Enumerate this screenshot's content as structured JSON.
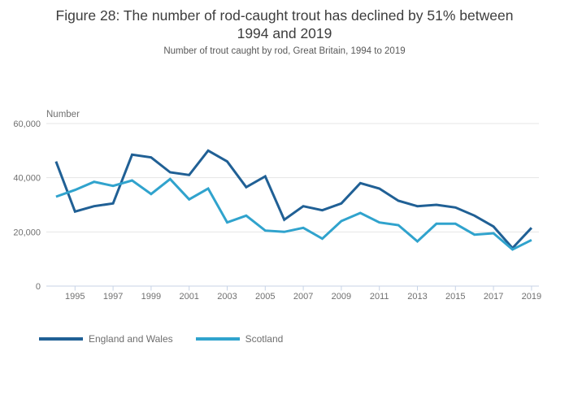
{
  "title": {
    "line1": "Figure 28: The number of rod-caught trout has declined by 51% between",
    "line2": "1994 and 2019"
  },
  "chart_data": {
    "type": "line",
    "title": "Figure 28: The number of rod-caught trout has declined by 51% between 1994 and 2019",
    "subtitle": "Number of trout caught by rod, Great Britain, 1994 to 2019",
    "unit_label": "Number",
    "x": [
      1994,
      1995,
      1996,
      1997,
      1998,
      1999,
      2000,
      2001,
      2002,
      2003,
      2004,
      2005,
      2006,
      2007,
      2008,
      2009,
      2010,
      2011,
      2012,
      2013,
      2014,
      2015,
      2016,
      2017,
      2018,
      2019
    ],
    "xticks": [
      1995,
      1997,
      1999,
      2001,
      2003,
      2005,
      2007,
      2009,
      2011,
      2013,
      2015,
      2017,
      2019
    ],
    "yticks": [
      0,
      20000,
      40000,
      60000
    ],
    "ytick_labels": [
      "0",
      "20,000",
      "40,000",
      "60,000"
    ],
    "ylim": [
      0,
      60000
    ],
    "grid": "horizontal",
    "legend_position": "bottom-left",
    "series": [
      {
        "name": "England and Wales",
        "color": "#206095",
        "values": [
          46000,
          27500,
          29500,
          30500,
          48500,
          47500,
          42000,
          41000,
          50000,
          46000,
          36500,
          40500,
          24500,
          29500,
          28000,
          30500,
          38000,
          36000,
          31500,
          29500,
          30000,
          29000,
          26000,
          22000,
          14000,
          21500
        ]
      },
      {
        "name": "Scotland",
        "color": "#30a3cd",
        "values": [
          33000,
          35500,
          38500,
          37000,
          39000,
          34000,
          39500,
          32000,
          36000,
          23500,
          26000,
          20500,
          20000,
          21500,
          17500,
          24000,
          27000,
          23500,
          22500,
          16500,
          23000,
          23000,
          19000,
          19500,
          13500,
          17000
        ]
      }
    ],
    "colors": {
      "gridline": "#e4e4e4",
      "axis": "#c7d3e6",
      "tick_text": "#707070",
      "title_text": "#3d3d3d",
      "subtitle_text": "#595959"
    }
  }
}
